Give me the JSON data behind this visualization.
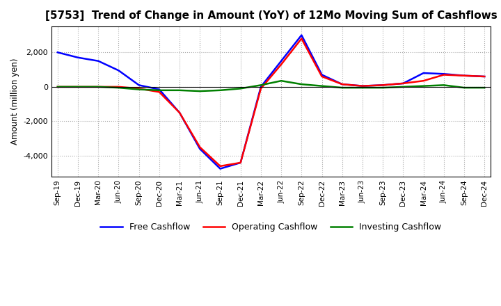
{
  "title": "[5753]  Trend of Change in Amount (YoY) of 12Mo Moving Sum of Cashflows",
  "ylabel": "Amount (million yen)",
  "x_labels": [
    "Sep-19",
    "Dec-19",
    "Mar-20",
    "Jun-20",
    "Sep-20",
    "Dec-20",
    "Mar-21",
    "Jun-21",
    "Sep-21",
    "Dec-21",
    "Mar-22",
    "Jun-22",
    "Sep-22",
    "Dec-22",
    "Mar-23",
    "Jun-23",
    "Sep-23",
    "Dec-23",
    "Mar-24",
    "Jun-24",
    "Sep-24",
    "Dec-24"
  ],
  "operating": [
    0,
    0,
    0,
    0,
    -100,
    -300,
    -1500,
    -3500,
    -4600,
    -4400,
    -100,
    1300,
    2800,
    600,
    150,
    50,
    100,
    200,
    350,
    700,
    650,
    600
  ],
  "investing": [
    0,
    0,
    0,
    -50,
    -150,
    -200,
    -200,
    -250,
    -200,
    -100,
    100,
    350,
    150,
    50,
    -50,
    -50,
    -50,
    0,
    50,
    100,
    -50,
    -50
  ],
  "free": [
    2000,
    1700,
    1500,
    950,
    100,
    -150,
    -1500,
    -3600,
    -4750,
    -4400,
    0,
    1500,
    3000,
    700,
    150,
    50,
    100,
    200,
    800,
    750,
    650,
    600
  ],
  "operating_color": "#ff0000",
  "investing_color": "#008000",
  "free_color": "#0000ff",
  "ylim": [
    -5200,
    3500
  ],
  "yticks": [
    -4000,
    -2000,
    0,
    2000
  ],
  "background_color": "#ffffff",
  "plot_bg_color": "#ffffff",
  "grid_color": "#999999",
  "title_fontsize": 11,
  "legend_labels": [
    "Operating Cashflow",
    "Investing Cashflow",
    "Free Cashflow"
  ]
}
